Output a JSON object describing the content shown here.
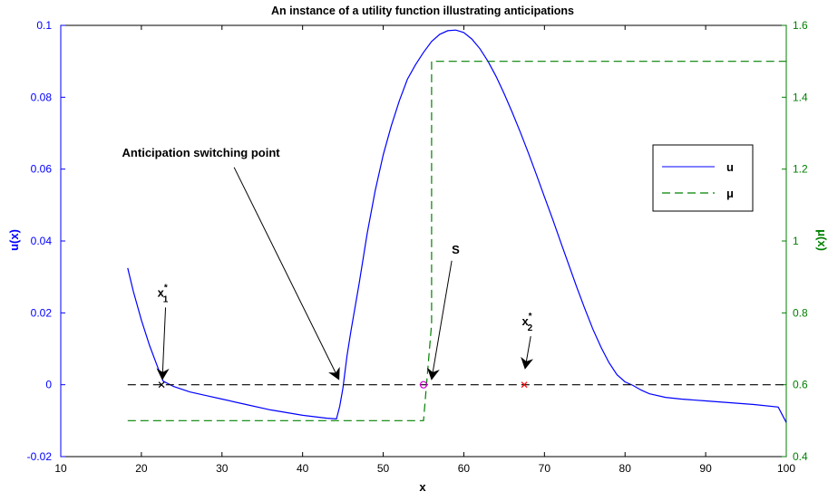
{
  "chart_data": {
    "type": "line",
    "title": "An instance of a utility function illustrating anticipations",
    "xlabel": "x",
    "ylabel_left": "u(x)",
    "ylabel_right": "μ(x)",
    "xlim": [
      10,
      100
    ],
    "ylim_left": [
      -0.02,
      0.1
    ],
    "ylim_right": [
      0.4,
      1.6
    ],
    "x_ticks": [
      10,
      20,
      30,
      40,
      50,
      60,
      70,
      80,
      90,
      100
    ],
    "x_tick_labels": [
      "10",
      "20",
      "30",
      "40",
      "50",
      "60",
      "70",
      "80",
      "90",
      "100"
    ],
    "y_left_ticks": [
      -0.02,
      0,
      0.02,
      0.04,
      0.06,
      0.08,
      0.1
    ],
    "y_left_tick_labels": [
      "-0.02",
      "0",
      "0.02",
      "0.04",
      "0.06",
      "0.08",
      "0.1"
    ],
    "y_right_ticks": [
      0.4,
      0.6,
      0.8,
      1.0,
      1.2,
      1.4,
      1.6
    ],
    "y_right_tick_labels": [
      "0.4",
      "0.6",
      "0.8",
      "1",
      "1.2",
      "1.4",
      "1.6"
    ],
    "grid": false,
    "legend_position": "top-right",
    "colors": {
      "u": "#0000ff",
      "mu": "#008000",
      "baseline": "#000000",
      "point_s": "#cc00cc",
      "point_x2": "#ff0000"
    },
    "series": [
      {
        "name": "u",
        "axis": "left",
        "style": "solid",
        "x": [
          18.3,
          19,
          20,
          21,
          22,
          22.7,
          24,
          26,
          28,
          30,
          33,
          36,
          40,
          43,
          44.2,
          44.6,
          45,
          45.5,
          46,
          47,
          48,
          49,
          50,
          51,
          52,
          53,
          54,
          55,
          56,
          57,
          58,
          59,
          60,
          61,
          62,
          63,
          64,
          65,
          66,
          67,
          68,
          69,
          70,
          71,
          72,
          73,
          74,
          75,
          76,
          77,
          78,
          79,
          80,
          81,
          82,
          83,
          85,
          87,
          90,
          93,
          96,
          99,
          100
        ],
        "y": [
          0.0325,
          0.026,
          0.018,
          0.011,
          0.005,
          0.001,
          -0.0005,
          -0.002,
          -0.003,
          -0.004,
          -0.0055,
          -0.007,
          -0.0085,
          -0.0093,
          -0.0095,
          -0.006,
          -0.001,
          0.008,
          0.015,
          0.028,
          0.042,
          0.054,
          0.064,
          0.072,
          0.079,
          0.085,
          0.089,
          0.0925,
          0.0955,
          0.0975,
          0.0985,
          0.0987,
          0.098,
          0.0962,
          0.0935,
          0.09,
          0.0858,
          0.081,
          0.0758,
          0.0703,
          0.0645,
          0.0585,
          0.0523,
          0.0462,
          0.0398,
          0.0335,
          0.0272,
          0.0212,
          0.0155,
          0.0105,
          0.0062,
          0.0028,
          0.0008,
          -0.0002,
          -0.0015,
          -0.0025,
          -0.0035,
          -0.004,
          -0.0045,
          -0.005,
          -0.0055,
          -0.0062,
          -0.0105
        ]
      },
      {
        "name": "μ",
        "axis": "right",
        "style": "dashed",
        "x": [
          18.3,
          55,
          56,
          56,
          100
        ],
        "y": [
          0.5,
          0.5,
          0.77,
          1.5,
          1.5
        ]
      },
      {
        "axis": "left",
        "style": "dashed",
        "x": [
          18.3,
          100
        ],
        "y": [
          0,
          0
        ]
      }
    ],
    "points": [
      {
        "id": "x1",
        "x": 22.5,
        "y": 0,
        "marker": "x",
        "color": "#000000"
      },
      {
        "id": "s",
        "x": 55,
        "y": 0,
        "marker": "o",
        "color": "#cc00cc"
      },
      {
        "id": "x2",
        "x": 67.5,
        "y": 0,
        "marker": "x",
        "color": "#ff0000"
      }
    ],
    "annotations": [
      {
        "id": "switch",
        "text": "Anticipation switching point",
        "text_x": 17.6,
        "text_y": 0.0635,
        "arrow_from": [
          31.5,
          0.0605
        ],
        "arrow_to": [
          44.5,
          0.0015
        ]
      },
      {
        "id": "s",
        "text": "S",
        "text_x": 58.5,
        "text_y": 0.0365,
        "arrow_from": [
          58.5,
          0.0345
        ],
        "arrow_to": [
          56,
          0.0015
        ]
      },
      {
        "id": "x1",
        "text": "x",
        "superscript": "*",
        "subscript": "1",
        "text_x": 22.0,
        "text_y": 0.0245,
        "arrow_from": [
          23.0,
          0.0215
        ],
        "arrow_to": [
          22.6,
          0.0015
        ]
      },
      {
        "id": "x2",
        "text": "x",
        "superscript": "*",
        "subscript": "2",
        "text_x": 67.2,
        "text_y": 0.0165,
        "arrow_from": [
          68.3,
          0.0135
        ],
        "arrow_to": [
          67.6,
          0.0045
        ]
      }
    ],
    "legend": [
      {
        "label": "u",
        "style": "solid",
        "color": "#0000ff"
      },
      {
        "label": "μ",
        "style": "dashed",
        "color": "#008000"
      }
    ]
  }
}
